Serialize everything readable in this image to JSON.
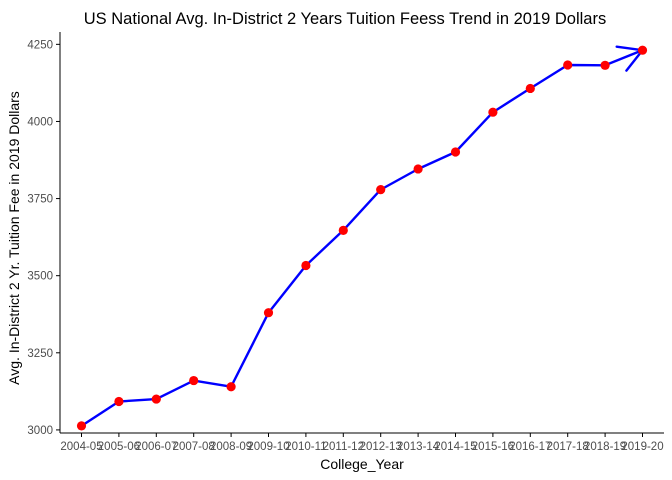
{
  "chart_data": {
    "type": "line",
    "title": "US National Avg. In-District 2 Years Tuition Feess Trend in 2019 Dollars",
    "xlabel": "College_Year",
    "ylabel": "Avg. In-District 2 Yr. Tuition Fee in 2019 Dollars",
    "categories": [
      "2004-05",
      "2005-06",
      "2006-07",
      "2007-08",
      "2008-09",
      "2009-10",
      "2010-11",
      "2011-12",
      "2012-13",
      "2013-14",
      "2014-15",
      "2015-16",
      "2016-17",
      "2017-18",
      "2018-19",
      "2019-20"
    ],
    "series": [
      {
        "values": [
          3013,
          3092,
          3100,
          3160,
          3140,
          3380,
          3533,
          3647,
          3779,
          3846,
          3901,
          4030,
          4107,
          4183,
          4182,
          4231
        ]
      }
    ],
    "ylim": [
      2990,
      4290
    ],
    "yticks": [
      3000,
      3250,
      3500,
      3750,
      4000,
      4250
    ],
    "grid": false,
    "legend": "none",
    "colors": {
      "line": "#0000ff",
      "point": "#ff0000",
      "axis": "#000000",
      "text": "#4d4d4d"
    },
    "arrow_at_end": true
  }
}
